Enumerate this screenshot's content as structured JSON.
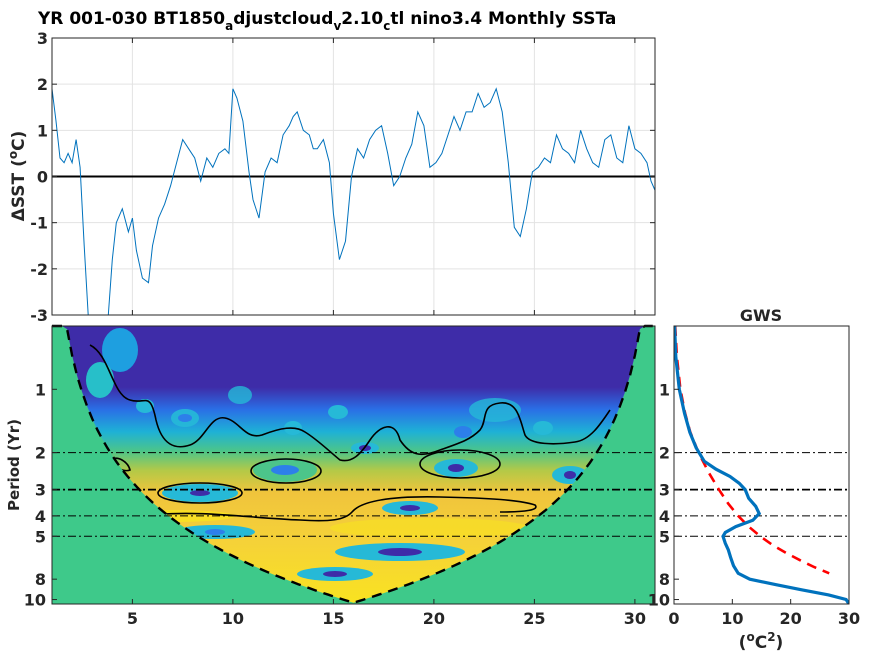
{
  "title_parts": {
    "p1": "YR 001-030 BT1850",
    "s1": "a",
    "p2": "djustcloud",
    "s2": "v",
    "p3": "2.10",
    "s3": "c",
    "p4": "tl nino3.4 Monthly SSTa"
  },
  "colors": {
    "series_line": "#0072BD",
    "gws_line": "#0072BD",
    "significance_line": "#FF0000",
    "wavelet_background": "#3EC98A",
    "wavelet_low_power": "#3E2CA8",
    "wavelet_high_power": "#F9D42C"
  },
  "chart_data": [
    {
      "type": "line",
      "name": "timeseries",
      "ylabel": "ΔSST (°C)",
      "xlim": [
        1,
        31
      ],
      "ylim": [
        -3,
        3
      ],
      "yticks": [
        3,
        2,
        1,
        0,
        -1,
        -2,
        -3
      ],
      "yticklabels": [
        "3",
        "2",
        "1",
        "0",
        "-1",
        "-2",
        "-3"
      ],
      "grid": true,
      "zero_line": true,
      "x": [
        1.0,
        1.2,
        1.4,
        1.6,
        1.8,
        2.0,
        2.2,
        2.4,
        2.6,
        2.8,
        3.0,
        3.5,
        3.8,
        4.0,
        4.2,
        4.5,
        4.8,
        5.0,
        5.2,
        5.5,
        5.8,
        6.0,
        6.3,
        6.6,
        6.9,
        7.2,
        7.5,
        7.8,
        8.1,
        8.4,
        8.7,
        9.0,
        9.3,
        9.6,
        9.8,
        10.0,
        10.2,
        10.5,
        10.8,
        11.0,
        11.3,
        11.6,
        11.9,
        12.2,
        12.5,
        12.8,
        13.0,
        13.2,
        13.5,
        13.8,
        14.0,
        14.2,
        14.5,
        14.8,
        15.0,
        15.3,
        15.6,
        15.9,
        16.2,
        16.5,
        16.8,
        17.1,
        17.4,
        17.7,
        18.0,
        18.3,
        18.6,
        18.9,
        19.2,
        19.5,
        19.8,
        20.1,
        20.4,
        20.7,
        21.0,
        21.3,
        21.6,
        21.9,
        22.2,
        22.5,
        22.8,
        23.1,
        23.4,
        23.7,
        24.0,
        24.3,
        24.6,
        24.9,
        25.2,
        25.5,
        25.8,
        26.1,
        26.4,
        26.7,
        27.0,
        27.3,
        27.6,
        27.9,
        28.2,
        28.5,
        28.8,
        29.1,
        29.4,
        29.7,
        30.0,
        30.3,
        30.6,
        30.8,
        31.0
      ],
      "y": [
        1.9,
        1.2,
        0.4,
        0.3,
        0.5,
        0.3,
        0.8,
        0.2,
        -1.5,
        -3.0,
        -3.2,
        -3.3,
        -3.0,
        -1.8,
        -1.0,
        -0.7,
        -1.2,
        -0.9,
        -1.6,
        -2.2,
        -2.3,
        -1.5,
        -0.9,
        -0.6,
        -0.2,
        0.3,
        0.8,
        0.6,
        0.4,
        -0.1,
        0.4,
        0.2,
        0.5,
        0.6,
        0.5,
        1.9,
        1.7,
        1.2,
        0.1,
        -0.5,
        -0.9,
        0.1,
        0.4,
        0.3,
        0.9,
        1.1,
        1.3,
        1.4,
        1.0,
        0.9,
        0.6,
        0.6,
        0.8,
        0.3,
        -0.8,
        -1.8,
        -1.4,
        0.0,
        0.6,
        0.4,
        0.8,
        1.0,
        1.1,
        0.5,
        -0.2,
        0.0,
        0.4,
        0.7,
        1.4,
        1.1,
        0.2,
        0.3,
        0.5,
        0.9,
        1.3,
        1.0,
        1.4,
        1.4,
        1.8,
        1.5,
        1.6,
        1.9,
        1.4,
        0.3,
        -1.1,
        -1.3,
        -0.7,
        0.1,
        0.2,
        0.4,
        0.3,
        0.9,
        0.6,
        0.5,
        0.3,
        1.0,
        0.6,
        0.3,
        0.2,
        0.8,
        0.9,
        0.4,
        0.3,
        1.1,
        0.6,
        0.5,
        0.3,
        -0.1,
        -0.3
      ]
    },
    {
      "type": "heatmap",
      "name": "wavelet_power",
      "ylabel": "Period (Yr)",
      "xlim": [
        1,
        31
      ],
      "ylim": [
        0.5,
        10.5
      ],
      "yscale": "log",
      "xticks": [
        5,
        10,
        15,
        20,
        25,
        30
      ],
      "xticklabels": [
        "5",
        "10",
        "15",
        "20",
        "25",
        "30"
      ],
      "yticks": [
        1,
        2,
        3,
        4,
        5,
        8,
        10
      ],
      "yticklabels": [
        "1",
        "2",
        "3",
        "4",
        "5",
        "8",
        "10"
      ],
      "reference_periods": [
        2,
        3,
        4,
        5
      ],
      "cone_of_influence": true,
      "significance_contours": true
    },
    {
      "type": "line",
      "name": "global_wavelet_spectrum",
      "title": "GWS",
      "xlabel": "(°C²)",
      "xlim": [
        0,
        30
      ],
      "ylim": [
        0.5,
        10.5
      ],
      "yscale": "log",
      "xticks": [
        0,
        10,
        20,
        30
      ],
      "xticklabels": [
        "0",
        "10",
        "20",
        "30"
      ],
      "yticks": [
        1,
        2,
        3,
        4,
        5,
        8,
        10
      ],
      "yticklabels": [
        "1",
        "2",
        "3",
        "4",
        "5",
        "8",
        "10"
      ],
      "reference_periods": [
        2,
        3,
        4,
        5
      ],
      "series": [
        {
          "role": "spectrum",
          "period": [
            0.5,
            0.7,
            1.0,
            1.3,
            1.6,
            1.9,
            2.2,
            2.4,
            2.6,
            2.8,
            3.0,
            3.3,
            3.6,
            3.9,
            4.2,
            4.5,
            4.8,
            5.0,
            5.4,
            5.8,
            6.3,
            6.9,
            7.5,
            8.0,
            8.5,
            9.0,
            9.5,
            10.0,
            10.5
          ],
          "power": [
            0.1,
            0.3,
            0.9,
            1.8,
            2.7,
            3.8,
            5.2,
            7.2,
            9.6,
            11.2,
            12.2,
            12.8,
            14.0,
            14.6,
            13.5,
            10.6,
            8.8,
            8.4,
            8.8,
            9.3,
            9.7,
            10.2,
            11.0,
            13.0,
            17.5,
            22.0,
            26.5,
            29.5,
            30.0
          ]
        },
        {
          "role": "significance",
          "period": [
            0.5,
            0.7,
            1.0,
            1.3,
            1.6,
            2.0,
            2.5,
            3.0,
            3.5,
            4.0,
            4.5,
            5.0,
            5.5,
            6.0,
            6.5,
            7.0,
            7.5
          ],
          "power": [
            0.2,
            0.5,
            1.1,
            1.9,
            2.8,
            4.2,
            6.0,
            7.7,
            9.3,
            11.0,
            12.8,
            14.8,
            16.9,
            19.2,
            21.6,
            24.0,
            26.6
          ]
        }
      ]
    }
  ]
}
